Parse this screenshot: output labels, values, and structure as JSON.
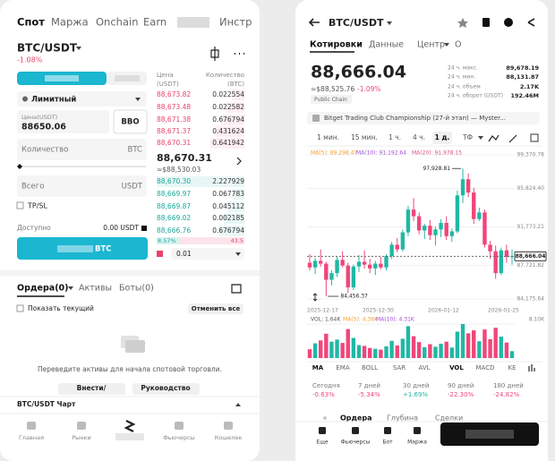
{
  "left_screen": {
    "tabs": [
      "Спот",
      "Маржа",
      "Onchain",
      "Earn",
      "Инстр"
    ],
    "pair": "BTC/USDT",
    "change": "-1.08%",
    "order_type": "Лимитный",
    "price_field_label": "Цена(USDT)",
    "price_field_value": "88650.06",
    "bbo": "BBO",
    "quantity_label": "Количество",
    "quantity_unit": "BTC",
    "total_label": "Всего",
    "total_unit": "USDT",
    "tpsl": "TP/SL",
    "available_label": "Доступно",
    "available_value": "0.00 USDT",
    "submit_unit": "BTC",
    "book": {
      "price_header": [
        "Цена",
        "(USDT)"
      ],
      "qty_header": [
        "Количество",
        "(BTC)"
      ],
      "asks": [
        [
          "88,673.82",
          "0.022554"
        ],
        [
          "88,673.48",
          "0.022582"
        ],
        [
          "88,671.38",
          "0.676794"
        ],
        [
          "88,671.37",
          "0.431624"
        ],
        [
          "88,670.31",
          "0.641942"
        ]
      ],
      "last": "88,670.31",
      "last_usd": "≈$88,530.03",
      "bids": [
        [
          "88,670.30",
          "2.227929"
        ],
        [
          "88,669.97",
          "0.067783"
        ],
        [
          "88,669.87",
          "0.045112"
        ],
        [
          "88,669.02",
          "0.002185"
        ],
        [
          "88,666.76",
          "0.676794"
        ]
      ],
      "buy_ratio": "8.57%",
      "sell_ratio": "43.5",
      "precision": "0.01"
    },
    "orders_tabs": [
      "Ордера(0)",
      "Активы",
      "Боты(0)"
    ],
    "show_current": "Показать текущий",
    "cancel_all": "Отменить все",
    "empty_message": "Переведите активы для начала спотовой торговли.",
    "buttons": [
      "Внести/",
      "Руководство"
    ],
    "chart_section": "BTC/USDT Чарт",
    "nav": [
      "Главная",
      "Рынки",
      "Фьючерсы",
      "Кошелек"
    ]
  },
  "right_screen": {
    "pair": "BTC/USDT",
    "tabs": [
      "Котировки",
      "Данные",
      "Центр",
      "О"
    ],
    "price": "88,666.04",
    "price_usd": "≈$88,525.76",
    "change": "-1.09%",
    "tag": "Public Chain",
    "stats": [
      {
        "label": "24 ч. макс.",
        "value": "89,678.19"
      },
      {
        "label": "24 ч. мин.",
        "value": "88,131.87"
      },
      {
        "label": "24 ч. объем",
        "value": "2.17K"
      },
      {
        "label": "24 ч. оборот (USDT)",
        "value": "192.46M"
      }
    ],
    "banner": "Bitget Trading Club Championship (27-й этап) — Myster...",
    "intervals": [
      "1 мин.",
      "15 мин.",
      "1 ч.",
      "4 ч.",
      "1 д.",
      "ТФ"
    ],
    "ma_legend": [
      {
        "text": "MA(5): 89,298.47",
        "color": "#f0a030"
      },
      {
        "text": "MA(10): 91,192.64",
        "color": "#a24fe0"
      },
      {
        "text": "MA(20): 91,978.15",
        "color": "#e0508a"
      }
    ],
    "chart_data": {
      "type": "candlestick",
      "up_color": "#20b8a6",
      "down_color": "#f0467a",
      "ylim": [
        84175.64,
        99370.78
      ],
      "yticks": [
        {
          "value": 99370.78,
          "label": "99,370.78"
        },
        {
          "value": 95824.4,
          "label": "95,824.40"
        },
        {
          "value": 91773.21,
          "label": "91,773.21"
        },
        {
          "value": 87721.82,
          "label": "87,721.82"
        },
        {
          "value": 84175.64,
          "label": "84,175.64"
        }
      ],
      "last_price": {
        "value": 88666.04,
        "label": "88,666.04"
      },
      "high_label": "97,928.81",
      "low_label": "84,456.37",
      "x_labels": [
        "2025-12-17",
        "2025-12-30",
        "2026-01-12",
        "2026-01-25"
      ],
      "candles": [
        [
          88000,
          88900,
          87200,
          87500
        ],
        [
          87500,
          88500,
          86800,
          88200
        ],
        [
          88200,
          89400,
          87600,
          87900
        ],
        [
          87900,
          88100,
          84456.37,
          86200
        ],
        [
          86200,
          87200,
          85600,
          86900
        ],
        [
          86900,
          88600,
          86500,
          88300
        ],
        [
          88300,
          89200,
          87500,
          87700
        ],
        [
          87700,
          88000,
          84800,
          85400
        ],
        [
          85400,
          87800,
          85100,
          87600
        ],
        [
          87600,
          88800,
          87000,
          88100
        ],
        [
          88100,
          89300,
          87400,
          87800
        ],
        [
          87800,
          88400,
          86900,
          87400
        ],
        [
          87400,
          88200,
          86700,
          87900
        ],
        [
          87900,
          88600,
          87300,
          87500
        ],
        [
          87500,
          88900,
          87200,
          88700
        ],
        [
          88700,
          90200,
          88400,
          89900
        ],
        [
          89900,
          90600,
          89100,
          89400
        ],
        [
          89400,
          91500,
          89200,
          91200
        ],
        [
          91200,
          94000,
          90800,
          93600
        ],
        [
          93600,
          94800,
          92400,
          92900
        ],
        [
          92900,
          93300,
          91000,
          91400
        ],
        [
          91400,
          92100,
          90500,
          91900
        ],
        [
          91900,
          92500,
          90400,
          90900
        ],
        [
          90900,
          91800,
          89800,
          91500
        ],
        [
          91500,
          92600,
          90700,
          92200
        ],
        [
          92200,
          92900,
          90400,
          90800
        ],
        [
          90800,
          91600,
          90200,
          91300
        ],
        [
          91300,
          95600,
          91100,
          95100
        ],
        [
          95100,
          97928.81,
          94300,
          96800
        ],
        [
          96800,
          97400,
          94900,
          95400
        ],
        [
          95400,
          95900,
          92100,
          92600
        ],
        [
          92600,
          93800,
          92400,
          93300
        ],
        [
          93300,
          93600,
          89600,
          89900
        ],
        [
          89900,
          90300,
          88400,
          89200
        ],
        [
          89200,
          89800,
          86300,
          86900
        ],
        [
          86900,
          89600,
          86700,
          89300
        ],
        [
          89300,
          89900,
          88000,
          88600
        ],
        [
          88600,
          89400,
          87800,
          88666.04
        ]
      ],
      "volume": {
        "legend": [
          {
            "text": "VOL: 1.64K",
            "color": "#555555"
          },
          {
            "text": "MA(5): 4.36K",
            "color": "#f0a030"
          },
          {
            "text": "MA(10): 4.31K",
            "color": "#a24fe0"
          }
        ],
        "ylim": [
          0,
          8.1
        ],
        "yticks": [
          {
            "value": 8.1,
            "label": "8.10K"
          }
        ],
        "values": [
          2.1,
          3.5,
          4.2,
          5.8,
          3.9,
          4.4,
          3.6,
          6.9,
          4.8,
          3.1,
          2.9,
          2.4,
          2.2,
          2.0,
          2.8,
          4.1,
          3.0,
          4.6,
          7.6,
          5.2,
          3.8,
          2.6,
          3.3,
          2.7,
          3.4,
          3.9,
          2.5,
          6.3,
          8.1,
          5.9,
          6.6,
          4.0,
          6.8,
          4.5,
          7.2,
          5.1,
          3.7,
          1.64
        ]
      }
    },
    "indicators": [
      "MA",
      "EMA",
      "BOLL",
      "SAR",
      "AVL",
      "VOL",
      "MACD",
      "KE"
    ],
    "performance": [
      {
        "period": "Сегодня",
        "value": "-0.63%",
        "color": "#f0467a"
      },
      {
        "period": "7 дней",
        "value": "-5.34%",
        "color": "#f0467a"
      },
      {
        "period": "30 дней",
        "value": "+1.69%",
        "color": "#20b8a6"
      },
      {
        "period": "90 дней",
        "value": "-22.30%",
        "color": "#f0467a"
      },
      {
        "period": "180 дней",
        "value": "-24.82%",
        "color": "#f0467a"
      }
    ],
    "bottom_tabs": [
      "Ордера",
      "Глубина",
      "Сделки"
    ],
    "bottom_nav": [
      "Еще",
      "Фьючерсы",
      "Бот",
      "Маржа"
    ]
  }
}
